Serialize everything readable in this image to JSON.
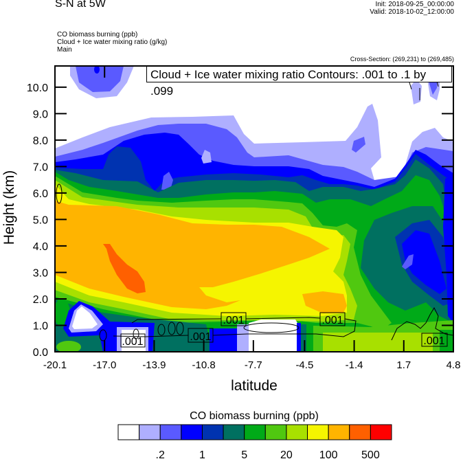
{
  "header": {
    "title": "S-N at 5W",
    "init": "Init: 2018-09-25_00:00:00",
    "valid": "Valid: 2018-10-02_12:00:00",
    "fields": [
      "CO biomass burning   (ppb)",
      "Cloud + Ice water mixing ratio   (g/kg)",
      "Main"
    ],
    "cross_section": "Cross-Section: (269,231) to (269,485)"
  },
  "chart_data": {
    "type": "heatmap",
    "subtype": "filled contour cross-section with line contour overlay",
    "xlabel": "latitude",
    "ylabel": "Height (km)",
    "xlim": [
      -20.1,
      4.8
    ],
    "ylim": [
      0.0,
      10.8
    ],
    "x_ticks": [
      "-20.1",
      "-17.0",
      "-13.9",
      "-10.8",
      "-7.7",
      "-4.5",
      "-1.4",
      "1.7",
      "4.8"
    ],
    "x_tick_values": [
      -20.1,
      -17.0,
      -13.9,
      -10.8,
      -7.7,
      -4.5,
      -1.4,
      1.7,
      4.8
    ],
    "y_ticks": [
      "0.0",
      "1.0",
      "2.0",
      "3.0",
      "4.0",
      "5.0",
      "6.0",
      "7.0",
      "8.0",
      "9.0",
      "10.0"
    ],
    "y_tick_values": [
      0,
      1,
      2,
      3,
      4,
      5,
      6,
      7,
      8,
      9,
      10
    ],
    "overlay_legend": "Cloud + Ice water mixing ratio Contours: .001 to .1 by .099",
    "contour_labels": [
      ".001",
      ".001",
      ".001",
      ".001",
      ".001"
    ],
    "colorbar": {
      "title": "CO biomass burning  (ppb)",
      "colors": [
        "#FFFFFF",
        "#AFAFFF",
        "#5A5AFF",
        "#0000FF",
        "#0033B0",
        "#007060",
        "#00AA18",
        "#50C810",
        "#A8E000",
        "#F5F500",
        "#FFB400",
        "#FF6000",
        "#FF0000"
      ],
      "labels": [
        ".2",
        "1",
        "5",
        "20",
        "100",
        "500"
      ],
      "label_boundaries": [
        2,
        4,
        6,
        8,
        10,
        12
      ],
      "placement": "bottom"
    },
    "grid": false
  }
}
